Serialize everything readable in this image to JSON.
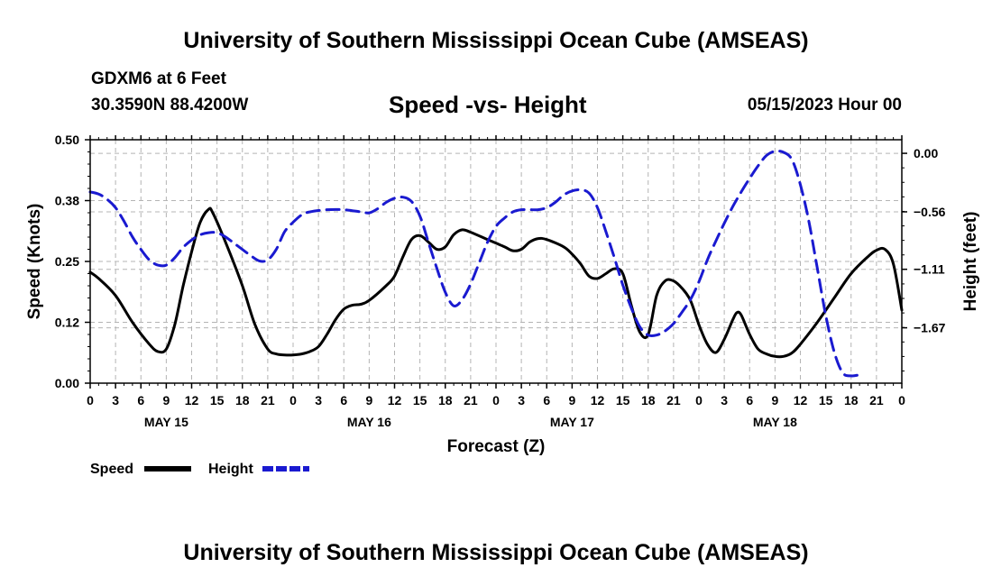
{
  "header": {
    "title_top": "University of Southern Mississippi Ocean Cube (AMSEAS)",
    "station": "GDXM6 at 6 Feet",
    "coords": "30.3590N  88.4200W",
    "plot_title": "Speed -vs- Height",
    "datetime": "05/15/2023 Hour 00",
    "title_bottom": "University of Southern Mississippi Ocean Cube (AMSEAS)"
  },
  "colors": {
    "speed": "#000000",
    "height": "#1a1ad0",
    "grid": "#b4b4b4"
  },
  "chart_data": {
    "type": "line",
    "title": "Speed -vs- Height",
    "xlabel": "Forecast (Z)",
    "ylabel_left": "Speed (Knots)",
    "ylabel_right": "Height (feet)",
    "x_unit": "hours from 05/15/2023 00Z",
    "xlim": [
      0,
      96
    ],
    "ylim_left": [
      0,
      0.5
    ],
    "ylim_right": [
      -2.2,
      0.13
    ],
    "x_tick_labels": [
      "0",
      "3",
      "6",
      "9",
      "12",
      "15",
      "18",
      "21",
      "0",
      "3",
      "6",
      "9",
      "12",
      "15",
      "18",
      "21",
      "0",
      "3",
      "6",
      "9",
      "12",
      "15",
      "18",
      "21",
      "0",
      "3",
      "6",
      "9",
      "12",
      "15",
      "18",
      "21",
      "0"
    ],
    "day_labels": [
      {
        "label": "MAY 15",
        "hour": 9
      },
      {
        "label": "MAY 16",
        "hour": 33
      },
      {
        "label": "MAY 17",
        "hour": 57
      },
      {
        "label": "MAY 18",
        "hour": 81
      }
    ],
    "left_ticks": [
      {
        "value": 0.0,
        "label": "0.00"
      },
      {
        "value": 0.125,
        "label": "0.12"
      },
      {
        "value": 0.25,
        "label": "0.25"
      },
      {
        "value": 0.375,
        "label": "0.38"
      },
      {
        "value": 0.5,
        "label": "0.50"
      }
    ],
    "right_ticks": [
      {
        "value": 0.0,
        "label": "0.00"
      },
      {
        "value": -0.56,
        "label": "−0.56"
      },
      {
        "value": -1.11,
        "label": "−1.11"
      },
      {
        "value": -1.67,
        "label": "−1.67"
      }
    ],
    "series": [
      {
        "name": "Speed",
        "axis": "left",
        "style": "solid",
        "points": [
          [
            0,
            0.228
          ],
          [
            1,
            0.215
          ],
          [
            3,
            0.18
          ],
          [
            5,
            0.125
          ],
          [
            7,
            0.08
          ],
          [
            8,
            0.065
          ],
          [
            9,
            0.07
          ],
          [
            10,
            0.12
          ],
          [
            11,
            0.2
          ],
          [
            12,
            0.27
          ],
          [
            13,
            0.33
          ],
          [
            14,
            0.357
          ],
          [
            14.5,
            0.35
          ],
          [
            16,
            0.29
          ],
          [
            18,
            0.2
          ],
          [
            19.5,
            0.12
          ],
          [
            21,
            0.07
          ],
          [
            22,
            0.06
          ],
          [
            23,
            0.058
          ],
          [
            24,
            0.058
          ],
          [
            25,
            0.06
          ],
          [
            26,
            0.065
          ],
          [
            27,
            0.075
          ],
          [
            28,
            0.1
          ],
          [
            29,
            0.13
          ],
          [
            30,
            0.152
          ],
          [
            31,
            0.16
          ],
          [
            32,
            0.162
          ],
          [
            33,
            0.17
          ],
          [
            35,
            0.2
          ],
          [
            36,
            0.22
          ],
          [
            37,
            0.26
          ],
          [
            38,
            0.295
          ],
          [
            39,
            0.303
          ],
          [
            40,
            0.29
          ],
          [
            41,
            0.275
          ],
          [
            42,
            0.28
          ],
          [
            43,
            0.305
          ],
          [
            44,
            0.315
          ],
          [
            45,
            0.31
          ],
          [
            47,
            0.295
          ],
          [
            49,
            0.28
          ],
          [
            50,
            0.272
          ],
          [
            51,
            0.275
          ],
          [
            52,
            0.29
          ],
          [
            53,
            0.297
          ],
          [
            54,
            0.295
          ],
          [
            56,
            0.28
          ],
          [
            57,
            0.265
          ],
          [
            58,
            0.245
          ],
          [
            59,
            0.22
          ],
          [
            60,
            0.215
          ],
          [
            61,
            0.225
          ],
          [
            62,
            0.235
          ],
          [
            63,
            0.225
          ],
          [
            64,
            0.16
          ],
          [
            65,
            0.105
          ],
          [
            66,
            0.1
          ],
          [
            67,
            0.18
          ],
          [
            68,
            0.21
          ],
          [
            69,
            0.21
          ],
          [
            70,
            0.195
          ],
          [
            71,
            0.17
          ],
          [
            72,
            0.12
          ],
          [
            73,
            0.08
          ],
          [
            74,
            0.063
          ],
          [
            75,
            0.09
          ],
          [
            76,
            0.13
          ],
          [
            76.5,
            0.145
          ],
          [
            77,
            0.14
          ],
          [
            78,
            0.1
          ],
          [
            79,
            0.07
          ],
          [
            80,
            0.06
          ],
          [
            81,
            0.055
          ],
          [
            82,
            0.055
          ],
          [
            83,
            0.062
          ],
          [
            84,
            0.08
          ],
          [
            86,
            0.125
          ],
          [
            88,
            0.175
          ],
          [
            90,
            0.225
          ],
          [
            92,
            0.26
          ],
          [
            93,
            0.273
          ],
          [
            94,
            0.275
          ],
          [
            95,
            0.245
          ],
          [
            96,
            0.15
          ]
        ]
      },
      {
        "name": "Height",
        "axis": "right",
        "style": "dashed",
        "points": [
          [
            0,
            -0.37
          ],
          [
            1,
            -0.39
          ],
          [
            2,
            -0.44
          ],
          [
            3,
            -0.52
          ],
          [
            4,
            -0.65
          ],
          [
            5,
            -0.8
          ],
          [
            6,
            -0.92
          ],
          [
            7,
            -1.02
          ],
          [
            8,
            -1.07
          ],
          [
            9,
            -1.07
          ],
          [
            10,
            -1.0
          ],
          [
            11,
            -0.9
          ],
          [
            12,
            -0.83
          ],
          [
            13,
            -0.78
          ],
          [
            14,
            -0.76
          ],
          [
            15,
            -0.76
          ],
          [
            16,
            -0.8
          ],
          [
            17,
            -0.86
          ],
          [
            18,
            -0.92
          ],
          [
            19,
            -0.98
          ],
          [
            20,
            -1.03
          ],
          [
            21,
            -1.02
          ],
          [
            22,
            -0.92
          ],
          [
            23,
            -0.75
          ],
          [
            24,
            -0.66
          ],
          [
            25,
            -0.59
          ],
          [
            26,
            -0.56
          ],
          [
            28,
            -0.54
          ],
          [
            30,
            -0.54
          ],
          [
            32,
            -0.56
          ],
          [
            33,
            -0.57
          ],
          [
            34,
            -0.53
          ],
          [
            35,
            -0.47
          ],
          [
            36,
            -0.43
          ],
          [
            37,
            -0.42
          ],
          [
            38,
            -0.46
          ],
          [
            39,
            -0.6
          ],
          [
            40,
            -0.85
          ],
          [
            41,
            -1.1
          ],
          [
            42,
            -1.33
          ],
          [
            43,
            -1.46
          ],
          [
            44,
            -1.4
          ],
          [
            45,
            -1.25
          ],
          [
            46,
            -1.05
          ],
          [
            47,
            -0.85
          ],
          [
            48,
            -0.7
          ],
          [
            49,
            -0.62
          ],
          [
            50,
            -0.56
          ],
          [
            51,
            -0.54
          ],
          [
            52,
            -0.54
          ],
          [
            53,
            -0.54
          ],
          [
            54,
            -0.52
          ],
          [
            55,
            -0.47
          ],
          [
            56,
            -0.4
          ],
          [
            57,
            -0.36
          ],
          [
            58,
            -0.35
          ],
          [
            59,
            -0.38
          ],
          [
            60,
            -0.52
          ],
          [
            61,
            -0.75
          ],
          [
            62,
            -1.0
          ],
          [
            63,
            -1.26
          ],
          [
            64,
            -1.48
          ],
          [
            65,
            -1.66
          ],
          [
            66,
            -1.74
          ],
          [
            67,
            -1.74
          ],
          [
            68,
            -1.7
          ],
          [
            69,
            -1.63
          ],
          [
            70,
            -1.52
          ],
          [
            71,
            -1.4
          ],
          [
            72,
            -1.23
          ],
          [
            73,
            -1.02
          ],
          [
            74,
            -0.84
          ],
          [
            75,
            -0.67
          ],
          [
            76,
            -0.51
          ],
          [
            77,
            -0.37
          ],
          [
            78,
            -0.24
          ],
          [
            79,
            -0.12
          ],
          [
            80,
            -0.02
          ],
          [
            81,
            0.02
          ],
          [
            82,
            0.01
          ],
          [
            83,
            -0.06
          ],
          [
            84,
            -0.3
          ],
          [
            85,
            -0.65
          ],
          [
            86,
            -1.1
          ],
          [
            87,
            -1.55
          ],
          [
            88,
            -1.9
          ],
          [
            89,
            -2.1
          ],
          [
            90,
            -2.13
          ],
          [
            91,
            -2.12
          ]
        ]
      }
    ],
    "legend": [
      {
        "label": "Speed",
        "style": "solid"
      },
      {
        "label": "Height",
        "style": "dashed"
      }
    ]
  }
}
